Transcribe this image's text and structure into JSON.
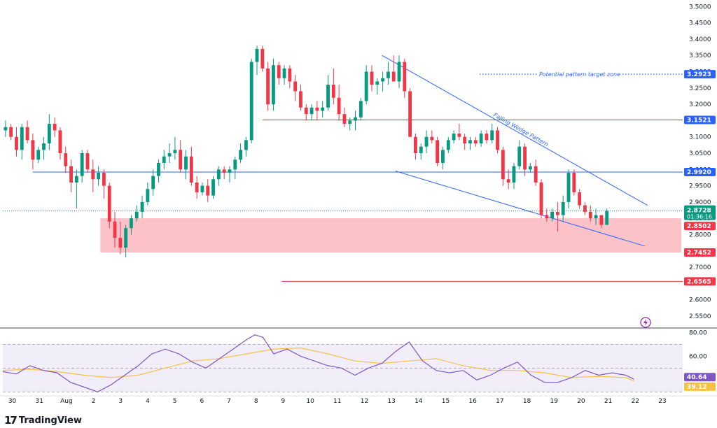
{
  "chart_data": {
    "type": "candlestick",
    "price_axis": {
      "ticks": [
        3.5,
        3.45,
        3.4,
        3.35,
        3.3,
        3.25,
        3.2,
        3.15,
        3.1,
        3.05,
        3.0,
        2.95,
        2.9,
        2.85,
        2.8,
        2.75,
        2.7,
        2.65,
        2.6,
        2.55
      ],
      "tick_labels": [
        "3.5000",
        "3.4500",
        "3.4000",
        "3.3500",
        "3.3000",
        "3.2500",
        "3.2000",
        "3.1500",
        "3.1000",
        "3.0500",
        "3.0000",
        "2.9500",
        "2.9000",
        "2.8500",
        "2.8000",
        "2.7500",
        "2.7000",
        "2.6500",
        "2.6000",
        "2.5500"
      ],
      "range": [
        2.52,
        3.52
      ]
    },
    "time_axis": {
      "labels": [
        "30",
        "31",
        "Aug",
        "2",
        "3",
        "4",
        "5",
        "6",
        "7",
        "8",
        "9",
        "10",
        "11",
        "12",
        "13",
        "14",
        "15",
        "16",
        "17",
        "18",
        "19",
        "20",
        "21",
        "22",
        "23"
      ],
      "range": [
        0,
        25.1
      ]
    },
    "candles": [
      [
        3.12,
        3.15,
        3.1,
        3.13
      ],
      [
        3.13,
        3.14,
        3.09,
        3.1
      ],
      [
        3.1,
        3.13,
        3.04,
        3.06
      ],
      [
        3.06,
        3.14,
        3.03,
        3.13
      ],
      [
        3.13,
        3.15,
        3.08,
        3.09
      ],
      [
        3.09,
        3.11,
        3.0,
        3.03
      ],
      [
        3.03,
        3.07,
        3.02,
        3.06
      ],
      [
        3.06,
        3.1,
        3.03,
        3.08
      ],
      [
        3.08,
        3.17,
        3.06,
        3.14
      ],
      [
        3.14,
        3.16,
        3.1,
        3.12
      ],
      [
        3.12,
        3.13,
        3.03,
        3.05
      ],
      [
        3.05,
        3.07,
        2.99,
        3.01
      ],
      [
        3.01,
        3.03,
        2.93,
        2.96
      ],
      [
        2.96,
        3.0,
        2.88,
        2.98
      ],
      [
        2.98,
        3.06,
        2.96,
        3.05
      ],
      [
        3.05,
        3.06,
        2.99,
        3.0
      ],
      [
        3.0,
        3.03,
        2.93,
        2.97
      ],
      [
        2.97,
        3.01,
        2.95,
        2.99
      ],
      [
        2.99,
        3.0,
        2.91,
        2.95
      ],
      [
        2.95,
        2.96,
        2.82,
        2.84
      ],
      [
        2.84,
        2.87,
        2.76,
        2.79
      ],
      [
        2.79,
        2.84,
        2.74,
        2.76
      ],
      [
        2.76,
        2.83,
        2.73,
        2.82
      ],
      [
        2.82,
        2.86,
        2.8,
        2.85
      ],
      [
        2.85,
        2.89,
        2.84,
        2.87
      ],
      [
        2.87,
        2.92,
        2.85,
        2.9
      ],
      [
        2.9,
        2.96,
        2.89,
        2.94
      ],
      [
        2.94,
        3.0,
        2.92,
        2.98
      ],
      [
        2.98,
        3.03,
        2.96,
        3.02
      ],
      [
        3.02,
        3.06,
        3.0,
        3.04
      ],
      [
        3.04,
        3.08,
        3.02,
        3.05
      ],
      [
        3.05,
        3.1,
        3.03,
        3.06
      ],
      [
        3.06,
        3.09,
        2.99,
        3.0
      ],
      [
        3.0,
        3.06,
        2.97,
        3.04
      ],
      [
        3.04,
        3.07,
        2.95,
        2.96
      ],
      [
        2.96,
        2.98,
        2.91,
        2.93
      ],
      [
        2.93,
        2.96,
        2.92,
        2.95
      ],
      [
        2.95,
        2.97,
        2.9,
        2.92
      ],
      [
        2.92,
        2.98,
        2.91,
        2.97
      ],
      [
        2.97,
        3.01,
        2.95,
        3.0
      ],
      [
        3.0,
        3.01,
        2.97,
        2.99
      ],
      [
        2.99,
        3.01,
        2.96,
        3.0
      ],
      [
        3.0,
        3.04,
        2.97,
        3.03
      ],
      [
        3.03,
        3.08,
        3.02,
        3.06
      ],
      [
        3.06,
        3.1,
        3.04,
        3.09
      ],
      [
        3.09,
        3.34,
        3.08,
        3.33
      ],
      [
        3.33,
        3.38,
        3.29,
        3.37
      ],
      [
        3.37,
        3.38,
        3.3,
        3.31
      ],
      [
        3.31,
        3.33,
        3.18,
        3.2
      ],
      [
        3.2,
        3.34,
        3.18,
        3.32
      ],
      [
        3.32,
        3.33,
        3.26,
        3.28
      ],
      [
        3.28,
        3.32,
        3.26,
        3.31
      ],
      [
        3.31,
        3.32,
        3.25,
        3.27
      ],
      [
        3.27,
        3.29,
        3.21,
        3.24
      ],
      [
        3.24,
        3.26,
        3.18,
        3.19
      ],
      [
        3.19,
        3.2,
        3.15,
        3.17
      ],
      [
        3.17,
        3.2,
        3.15,
        3.19
      ],
      [
        3.19,
        3.21,
        3.15,
        3.18
      ],
      [
        3.18,
        3.21,
        3.16,
        3.19
      ],
      [
        3.19,
        3.29,
        3.18,
        3.26
      ],
      [
        3.26,
        3.31,
        3.2,
        3.22
      ],
      [
        3.22,
        3.26,
        3.15,
        3.17
      ],
      [
        3.17,
        3.19,
        3.13,
        3.14
      ],
      [
        3.14,
        3.16,
        3.12,
        3.15
      ],
      [
        3.15,
        3.18,
        3.12,
        3.16
      ],
      [
        3.16,
        3.22,
        3.15,
        3.21
      ],
      [
        3.21,
        3.32,
        3.2,
        3.3
      ],
      [
        3.3,
        3.32,
        3.24,
        3.26
      ],
      [
        3.26,
        3.28,
        3.23,
        3.27
      ],
      [
        3.27,
        3.3,
        3.24,
        3.28
      ],
      [
        3.28,
        3.33,
        3.26,
        3.3
      ],
      [
        3.3,
        3.35,
        3.27,
        3.27
      ],
      [
        3.27,
        3.35,
        3.25,
        3.33
      ],
      [
        3.33,
        3.34,
        3.22,
        3.24
      ],
      [
        3.24,
        3.25,
        3.1,
        3.1
      ],
      [
        3.1,
        3.11,
        3.03,
        3.05
      ],
      [
        3.05,
        3.08,
        3.03,
        3.07
      ],
      [
        3.07,
        3.12,
        3.05,
        3.1
      ],
      [
        3.1,
        3.12,
        3.08,
        3.09
      ],
      [
        3.09,
        3.1,
        3.01,
        3.02
      ],
      [
        3.02,
        3.07,
        3.0,
        3.06
      ],
      [
        3.06,
        3.1,
        3.05,
        3.09
      ],
      [
        3.09,
        3.12,
        3.08,
        3.11
      ],
      [
        3.11,
        3.14,
        3.09,
        3.1
      ],
      [
        3.1,
        3.11,
        3.06,
        3.08
      ],
      [
        3.08,
        3.1,
        3.06,
        3.09
      ],
      [
        3.09,
        3.1,
        3.07,
        3.08
      ],
      [
        3.08,
        3.12,
        3.07,
        3.11
      ],
      [
        3.11,
        3.12,
        3.08,
        3.09
      ],
      [
        3.09,
        3.14,
        3.08,
        3.12
      ],
      [
        3.12,
        3.13,
        3.05,
        3.06
      ],
      [
        3.06,
        3.07,
        2.95,
        2.97
      ],
      [
        2.97,
        3.0,
        2.94,
        2.96
      ],
      [
        2.96,
        3.02,
        2.94,
        3.01
      ],
      [
        3.01,
        3.09,
        3.0,
        3.07
      ],
      [
        3.07,
        3.08,
        2.98,
        3.0
      ],
      [
        3.0,
        3.02,
        2.99,
        3.01
      ],
      [
        3.01,
        3.03,
        2.95,
        2.96
      ],
      [
        2.96,
        2.97,
        2.85,
        2.86
      ],
      [
        2.86,
        2.88,
        2.84,
        2.85
      ],
      [
        2.85,
        2.88,
        2.84,
        2.87
      ],
      [
        2.87,
        2.9,
        2.81,
        2.86
      ],
      [
        2.86,
        2.92,
        2.84,
        2.9
      ],
      [
        2.9,
        3.0,
        2.88,
        2.99
      ],
      [
        2.99,
        3.0,
        2.92,
        2.93
      ],
      [
        2.93,
        2.94,
        2.88,
        2.89
      ],
      [
        2.89,
        2.9,
        2.86,
        2.87
      ],
      [
        2.87,
        2.89,
        2.84,
        2.85
      ],
      [
        2.85,
        2.88,
        2.83,
        2.86
      ],
      [
        2.86,
        2.86,
        2.82,
        2.83
      ],
      [
        2.83,
        2.88,
        2.83,
        2.8728
      ]
    ],
    "horizontal_levels": [
      {
        "value": 3.1521,
        "label": "3.1521",
        "color": "#2962ff"
      },
      {
        "value": 2.992,
        "label": "2.9920",
        "color": "#2962ff"
      },
      {
        "value": 2.6565,
        "label": "2.6565",
        "color": "#f23645"
      }
    ],
    "target_level": {
      "value": 3.2923,
      "label": "3.2923",
      "text": "Potential pattern target zone",
      "color": "#2962ff"
    },
    "zone": {
      "top": 2.8502,
      "bottom": 2.7452,
      "top_label": "2.8502",
      "bottom_label": "2.7452",
      "color": "#f23645"
    },
    "current_price": {
      "value": 2.8728,
      "label": "2.8728",
      "countdown": "01:36:16",
      "color": "#089981"
    },
    "wedge": {
      "label": "Falling Wedge Pattern",
      "upper_line": [
        [
          14.0,
          3.35
        ],
        [
          23.8,
          2.89
        ]
      ],
      "lower_line": [
        [
          14.5,
          2.995
        ],
        [
          23.7,
          2.765
        ]
      ]
    },
    "rsi": {
      "ticks": [
        80,
        60
      ],
      "tick_labels": [
        "80.00",
        "60.00"
      ],
      "range": [
        29,
        82
      ],
      "overbought": 70,
      "oversold": 30,
      "rsi_value": 40.64,
      "rsi_label": "40.64",
      "ma_value": 39.12,
      "ma_label": "39.12",
      "rsi_color": "#7e57c2",
      "ma_color": "#f7c242",
      "rsi_points": [
        [
          0,
          47
        ],
        [
          0.5,
          45
        ],
        [
          1,
          52
        ],
        [
          1.5,
          48
        ],
        [
          2,
          46
        ],
        [
          2.5,
          38
        ],
        [
          3,
          34
        ],
        [
          3.5,
          30
        ],
        [
          4,
          36
        ],
        [
          4.5,
          44
        ],
        [
          5,
          52
        ],
        [
          5.5,
          62
        ],
        [
          6,
          66
        ],
        [
          6.5,
          62
        ],
        [
          7,
          55
        ],
        [
          7.5,
          50
        ],
        [
          8,
          58
        ],
        [
          8.5,
          66
        ],
        [
          9,
          74
        ],
        [
          9.3,
          78
        ],
        [
          9.6,
          76
        ],
        [
          10,
          62
        ],
        [
          10.5,
          66
        ],
        [
          11,
          60
        ],
        [
          11.5,
          56
        ],
        [
          12,
          52
        ],
        [
          12.5,
          50
        ],
        [
          13,
          44
        ],
        [
          13.5,
          50
        ],
        [
          14,
          54
        ],
        [
          14.5,
          64
        ],
        [
          15,
          72
        ],
        [
          15.5,
          56
        ],
        [
          16,
          48
        ],
        [
          16.5,
          46
        ],
        [
          17,
          48
        ],
        [
          17.5,
          40
        ],
        [
          18,
          44
        ],
        [
          18.5,
          50
        ],
        [
          19,
          55
        ],
        [
          19.5,
          44
        ],
        [
          20,
          38
        ],
        [
          20.5,
          38
        ],
        [
          21,
          42
        ],
        [
          21.5,
          48
        ],
        [
          22,
          44
        ],
        [
          22.5,
          46
        ],
        [
          23,
          44
        ],
        [
          23.3,
          40.64
        ]
      ],
      "ma_points": [
        [
          0,
          48
        ],
        [
          1,
          49
        ],
        [
          2,
          47
        ],
        [
          3,
          44
        ],
        [
          4,
          42
        ],
        [
          5,
          44
        ],
        [
          6,
          50
        ],
        [
          7,
          56
        ],
        [
          8,
          58
        ],
        [
          9,
          62
        ],
        [
          10,
          66
        ],
        [
          11,
          67
        ],
        [
          12,
          62
        ],
        [
          13,
          56
        ],
        [
          14,
          54
        ],
        [
          15,
          56
        ],
        [
          16,
          58
        ],
        [
          17,
          52
        ],
        [
          18,
          48
        ],
        [
          19,
          48
        ],
        [
          20,
          46
        ],
        [
          21,
          42
        ],
        [
          22,
          43
        ],
        [
          23,
          42
        ],
        [
          23.3,
          39.12
        ]
      ]
    }
  },
  "brand": {
    "mark": "17",
    "name": "TradingView"
  }
}
